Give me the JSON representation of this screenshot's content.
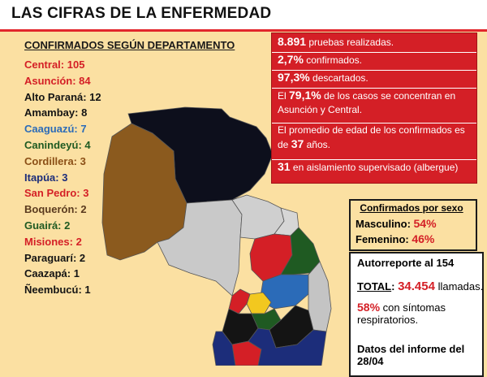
{
  "title": "LAS CIFRAS DE LA ENFERMEDAD",
  "departments": {
    "heading": "CONFIRMADOS SEGÚN DEPARTAMENTO",
    "items": [
      {
        "label": "Central: 105",
        "color": "#d41f26"
      },
      {
        "label": "Asunción: 84",
        "color": "#d41f26"
      },
      {
        "label": "Alto Paraná: 12",
        "color": "#141414"
      },
      {
        "label": "Amambay: 8",
        "color": "#141414"
      },
      {
        "label": "Caaguazú: 7",
        "color": "#2b6bb8"
      },
      {
        "label": "Canindeyú: 4",
        "color": "#1f5a22"
      },
      {
        "label": "Cordillera: 3",
        "color": "#8b4f16"
      },
      {
        "label": "Itapúa: 3",
        "color": "#1c2d7a"
      },
      {
        "label": "San Pedro: 3",
        "color": "#d41f26"
      },
      {
        "label": "Boquerón: 2",
        "color": "#5a3a1e"
      },
      {
        "label": "Guairá: 2",
        "color": "#1f5a22"
      },
      {
        "label": "Misiones: 2",
        "color": "#d41f26"
      },
      {
        "label": "Paraguarí: 2",
        "color": "#141414"
      },
      {
        "label": "Caazapá: 1",
        "color": "#141414"
      },
      {
        "label": "Ñeembucú: 1",
        "color": "#141414"
      }
    ]
  },
  "stats": {
    "tests_num": "8.891",
    "tests_text": " pruebas realizadas.",
    "confirmed_pct": "2,7%",
    "confirmed_text": " confirmados.",
    "discarded_pct": "97,3%",
    "discarded_text": " descartados.",
    "concentration_pre": "El ",
    "concentration_pct": "79,1%",
    "concentration_text": " de los casos se concentran en",
    "concentration_text2": "Asunción y Central.",
    "age_text": "El promedio de edad de los confirmados es",
    "age_pre": "de ",
    "age_num": "37",
    "age_post": " años.",
    "isolation_num": "31",
    "isolation_text": " en aislamiento supervisado (albergue)"
  },
  "sex": {
    "heading": "Confirmados por sexo",
    "male_label": "Masculino: ",
    "male_pct": "54%",
    "female_label": "Femenino: ",
    "female_pct": "46%"
  },
  "report": {
    "autoreporte_label": "Autorreporte al ",
    "autoreporte_num": "154",
    "total_label": "TOTAL",
    "total_colon": ": ",
    "total_num": "34.454",
    "total_text": " llamadas.",
    "resp_pct": "58%",
    "resp_text": " con síntomas",
    "resp_text2": "respiratorios.",
    "datos_line1": "Datos del informe del",
    "datos_line2": "28/04"
  },
  "colors": {
    "background": "#fbe0a2",
    "red": "#d41f26",
    "black_region": "#0d0f1c",
    "brown_region": "#8b5a1e",
    "grey_region": "#c9c9c9"
  }
}
